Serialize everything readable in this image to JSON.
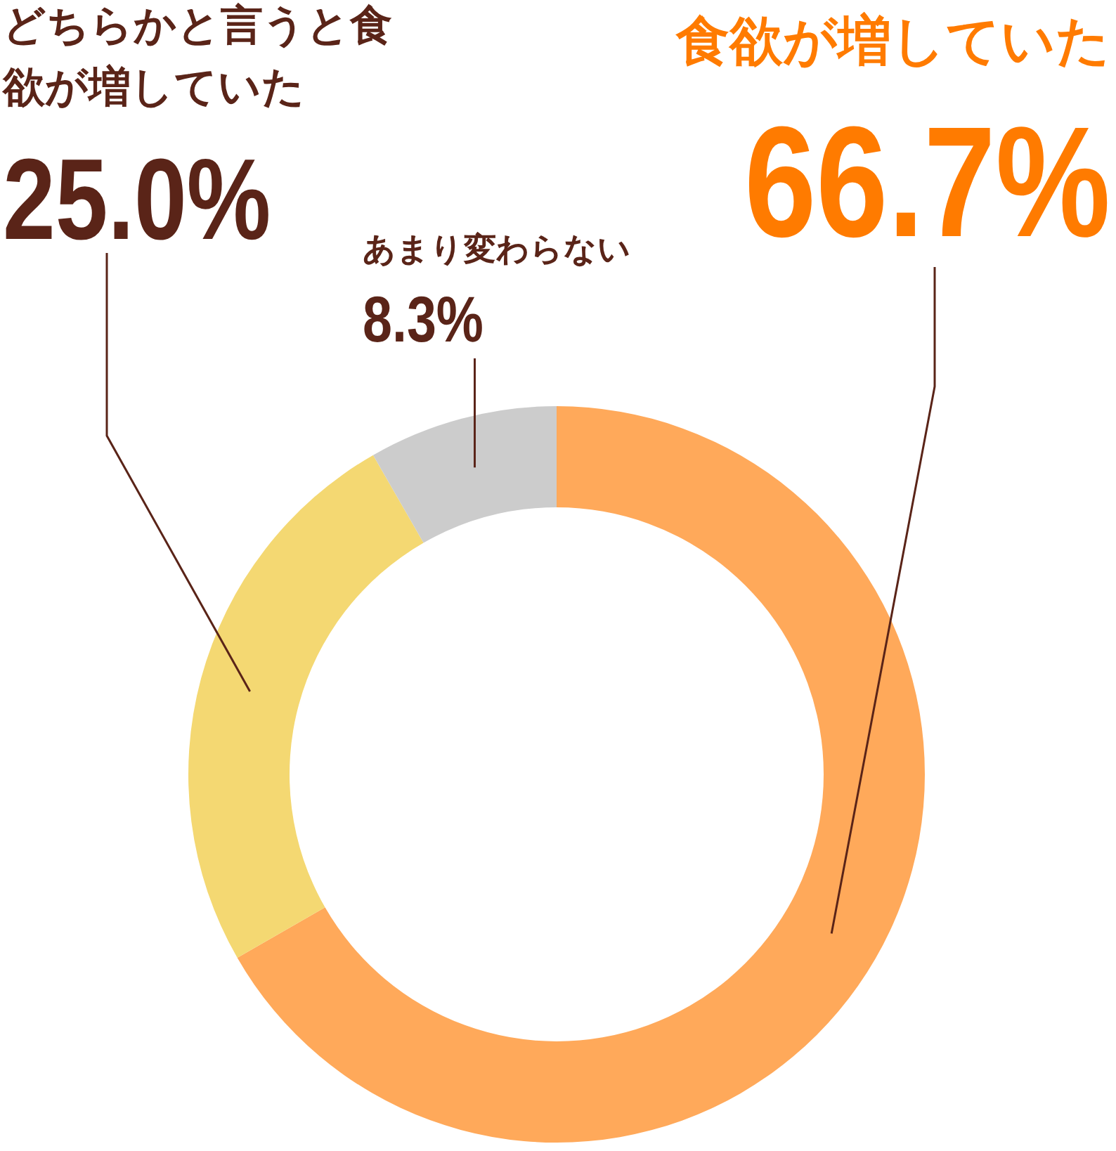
{
  "chart_data": {
    "type": "donut",
    "categories": [
      "食欲が増していた",
      "どちらかと言うと食欲が増していた",
      "あまり変わらない"
    ],
    "values": [
      66.7,
      25.0,
      8.3
    ],
    "colors": [
      "#ffa95a",
      "#f4d872",
      "#cccccc"
    ],
    "value_labels": [
      "66.7%",
      "25.0%",
      "8.3%"
    ]
  }
}
